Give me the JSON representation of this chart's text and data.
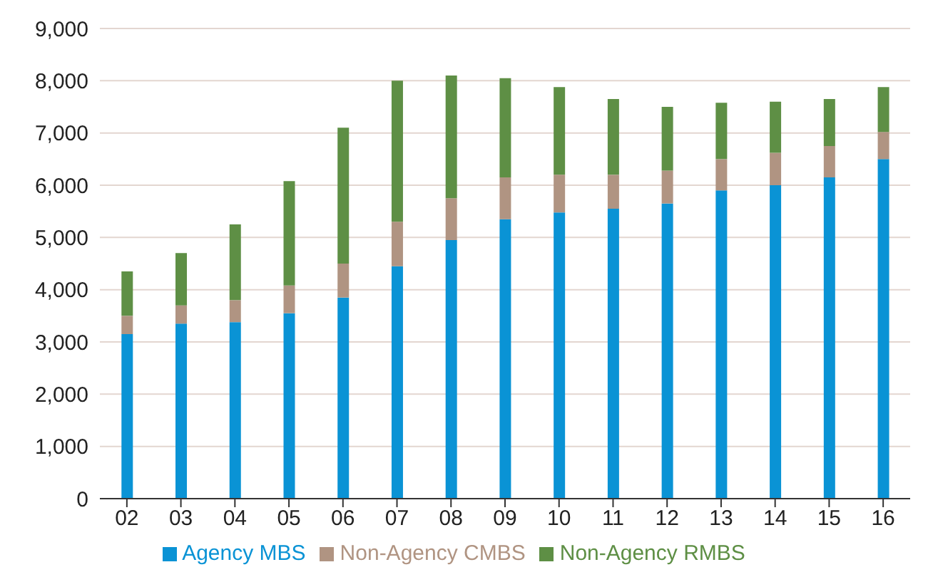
{
  "chart_data": {
    "type": "bar",
    "stacked": true,
    "categories": [
      "02",
      "03",
      "04",
      "05",
      "06",
      "07",
      "08",
      "09",
      "10",
      "11",
      "12",
      "13",
      "14",
      "15",
      "16"
    ],
    "series": [
      {
        "name": "Agency MBS",
        "color": "#0a93d5",
        "values": [
          3150,
          3350,
          3380,
          3550,
          3850,
          4450,
          4950,
          5350,
          5480,
          5550,
          5650,
          5900,
          6000,
          6150,
          6500
        ]
      },
      {
        "name": "Non-Agency CMBS",
        "color": "#b09482",
        "values": [
          350,
          350,
          420,
          530,
          650,
          850,
          800,
          800,
          720,
          650,
          630,
          600,
          620,
          600,
          520
        ]
      },
      {
        "name": "Non-Agency RMBS",
        "color": "#5e8f45",
        "values": [
          850,
          1000,
          1450,
          2000,
          2600,
          2700,
          2350,
          1900,
          1680,
          1450,
          1220,
          1080,
          980,
          900,
          860
        ]
      }
    ],
    "ylim": [
      0,
      9000
    ],
    "yticks": [
      {
        "value": 0,
        "label": "0"
      },
      {
        "value": 1000,
        "label": "1,000"
      },
      {
        "value": 2000,
        "label": "2,000"
      },
      {
        "value": 3000,
        "label": "3,000"
      },
      {
        "value": 4000,
        "label": "4,000"
      },
      {
        "value": 5000,
        "label": "5,000"
      },
      {
        "value": 6000,
        "label": "6,000"
      },
      {
        "value": 7000,
        "label": "7,000"
      },
      {
        "value": 8000,
        "label": "8,000"
      },
      {
        "value": 9000,
        "label": "9,000"
      }
    ],
    "grid": "y",
    "legend": "bottom"
  }
}
